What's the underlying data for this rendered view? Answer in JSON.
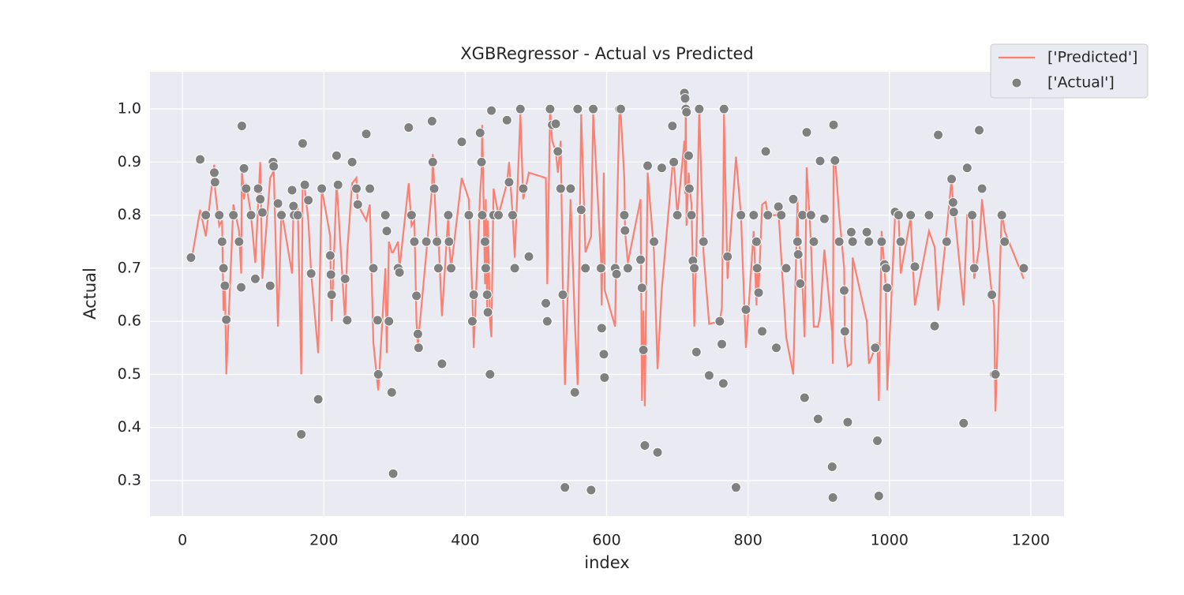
{
  "chart_data": {
    "type": "scatter",
    "title": "XGBRegressor - Actual vs Predicted",
    "xlabel": "index",
    "ylabel": "Actual",
    "x": [
      12,
      25,
      33,
      45,
      46,
      52,
      56,
      58,
      60,
      62,
      72,
      80,
      83,
      84,
      87,
      90,
      97,
      103,
      107,
      110,
      113,
      124,
      128,
      129,
      135,
      140,
      155,
      157,
      158,
      163,
      168,
      170,
      173,
      178,
      182,
      192,
      197,
      209,
      210,
      211,
      218,
      220,
      230,
      233,
      240,
      246,
      248,
      260,
      265,
      270,
      276,
      277,
      287,
      289,
      292,
      296,
      298,
      305,
      307,
      320,
      324,
      328,
      331,
      333,
      334,
      345,
      353,
      354,
      356,
      360,
      362,
      367,
      376,
      377,
      380,
      395,
      405,
      410,
      412,
      421,
      423,
      424,
      428,
      429,
      431,
      432,
      435,
      437,
      440,
      447,
      459,
      462,
      467,
      470,
      478,
      482,
      490,
      514,
      516,
      520,
      523,
      528,
      531,
      535,
      538,
      541,
      549,
      555,
      559,
      564,
      570,
      578,
      581,
      592,
      593,
      596,
      597,
      612,
      614,
      618,
      620,
      625,
      626,
      630,
      648,
      650,
      652,
      654,
      658,
      667,
      672,
      678,
      693,
      695,
      700,
      710,
      711,
      712,
      713,
      716,
      717,
      720,
      722,
      724,
      727,
      731,
      737,
      745,
      760,
      763,
      765,
      766,
      771,
      783,
      790,
      797,
      808,
      812,
      813,
      815,
      820,
      825,
      828,
      840,
      843,
      847,
      854,
      864,
      870,
      871,
      874,
      877,
      880,
      883,
      889,
      893,
      899,
      902,
      908,
      919,
      920,
      921,
      923,
      929,
      936,
      937,
      941,
      946,
      948,
      968,
      971,
      980,
      983,
      985,
      989,
      993,
      995,
      997,
      1008,
      1013,
      1016,
      1030,
      1036,
      1056,
      1064,
      1069,
      1081,
      1088,
      1090,
      1091,
      1105,
      1110,
      1117,
      1120,
      1127,
      1131,
      1145,
      1148,
      1150,
      1159,
      1163,
      1190
    ],
    "series": [
      {
        "name": "['Predicted']",
        "type": "line",
        "color": "#fa8072",
        "values": [
          0.71,
          0.81,
          0.76,
          0.895,
          0.85,
          0.78,
          0.79,
          0.62,
          0.67,
          0.5,
          0.82,
          0.77,
          0.69,
          0.89,
          0.83,
          0.86,
          0.8,
          0.71,
          0.82,
          0.9,
          0.68,
          0.87,
          0.88,
          0.89,
          0.59,
          0.81,
          0.69,
          0.81,
          0.8,
          0.82,
          0.5,
          0.86,
          0.85,
          0.79,
          0.69,
          0.54,
          0.85,
          0.76,
          0.65,
          0.6,
          0.86,
          0.82,
          0.6,
          0.73,
          0.86,
          0.87,
          0.82,
          0.79,
          0.82,
          0.56,
          0.48,
          0.47,
          0.7,
          0.54,
          0.75,
          0.73,
          0.73,
          0.75,
          0.7,
          0.86,
          0.78,
          0.79,
          0.6,
          0.55,
          0.57,
          0.73,
          0.85,
          0.915,
          0.86,
          0.74,
          0.76,
          0.61,
          0.8,
          0.75,
          0.7,
          0.87,
          0.83,
          0.65,
          0.55,
          0.84,
          0.88,
          0.97,
          0.67,
          0.83,
          0.62,
          0.79,
          0.6,
          0.57,
          0.85,
          0.8,
          0.86,
          0.9,
          0.8,
          0.72,
          0.99,
          0.83,
          0.88,
          0.87,
          0.67,
          1.0,
          0.94,
          0.92,
          0.88,
          0.94,
          0.67,
          0.48,
          0.83,
          0.6,
          0.48,
          0.99,
          0.73,
          0.76,
          0.99,
          0.72,
          0.63,
          0.88,
          0.66,
          0.59,
          0.77,
          0.99,
          0.99,
          0.87,
          0.77,
          0.71,
          0.83,
          0.45,
          0.62,
          0.44,
          0.88,
          0.73,
          0.51,
          0.66,
          0.89,
          0.9,
          0.8,
          0.94,
          0.84,
          1.02,
          0.78,
          0.88,
          0.86,
          0.82,
          0.7,
          0.59,
          0.74,
          1.0,
          0.73,
          0.595,
          0.6,
          0.625,
          0.82,
          0.99,
          0.68,
          0.91,
          0.8,
          0.55,
          0.77,
          0.63,
          0.7,
          0.66,
          0.82,
          0.825,
          0.8,
          0.8,
          0.81,
          0.72,
          0.57,
          0.5,
          0.83,
          0.76,
          0.73,
          0.67,
          0.57,
          0.89,
          0.75,
          0.59,
          0.59,
          0.61,
          0.735,
          0.58,
          0.52,
          0.895,
          0.91,
          0.8,
          0.7,
          0.56,
          0.515,
          0.52,
          0.72,
          0.6,
          0.52,
          0.55,
          0.56,
          0.45,
          0.77,
          0.7,
          0.66,
          0.47,
          0.8,
          0.8,
          0.69,
          0.795,
          0.63,
          0.77,
          0.74,
          0.62,
          0.77,
          0.87,
          0.82,
          0.82,
          0.63,
          0.8,
          0.8,
          0.68,
          0.74,
          0.83,
          0.65,
          0.63,
          0.43,
          0.81,
          0.77,
          0.68
        ]
      },
      {
        "name": "['Actual']",
        "type": "scatter",
        "color": "#808080",
        "values": [
          0.72,
          0.905,
          0.8,
          0.88,
          0.862,
          0.8,
          0.75,
          0.7,
          0.667,
          0.603,
          0.8,
          0.75,
          0.664,
          0.968,
          0.888,
          0.85,
          0.8,
          0.68,
          0.85,
          0.83,
          0.805,
          0.667,
          0.9,
          0.892,
          0.822,
          0.8,
          0.847,
          0.817,
          0.8,
          0.8,
          0.387,
          0.935,
          0.857,
          0.828,
          0.69,
          0.453,
          0.85,
          0.724,
          0.688,
          0.65,
          0.912,
          0.857,
          0.68,
          0.602,
          0.9,
          0.85,
          0.82,
          0.953,
          0.85,
          0.7,
          0.602,
          0.5,
          0.8,
          0.77,
          0.6,
          0.466,
          0.313,
          0.7,
          0.692,
          0.965,
          0.8,
          0.75,
          0.648,
          0.576,
          0.55,
          0.75,
          0.977,
          0.9,
          0.85,
          0.75,
          0.7,
          0.52,
          0.8,
          0.75,
          0.7,
          0.938,
          0.8,
          0.6,
          0.65,
          0.955,
          0.9,
          0.8,
          0.75,
          0.7,
          0.65,
          0.617,
          0.5,
          0.997,
          0.8,
          0.8,
          0.979,
          0.862,
          0.8,
          0.7,
          1.0,
          0.85,
          0.722,
          0.634,
          0.6,
          1.0,
          0.97,
          0.972,
          0.92,
          0.85,
          0.65,
          0.287,
          0.85,
          0.466,
          1.0,
          0.81,
          0.7,
          0.282,
          1.0,
          0.7,
          0.587,
          0.538,
          0.494,
          0.7,
          0.689,
          1.0,
          1.0,
          0.8,
          0.771,
          0.7,
          0.716,
          0.663,
          0.546,
          0.366,
          0.893,
          0.75,
          0.353,
          0.889,
          0.968,
          0.9,
          0.8,
          1.03,
          1.02,
          1.0,
          0.994,
          0.912,
          0.85,
          0.8,
          0.714,
          0.7,
          0.542,
          1.0,
          0.75,
          0.498,
          0.6,
          0.557,
          0.483,
          1.0,
          0.722,
          0.287,
          0.8,
          0.622,
          0.8,
          0.75,
          0.7,
          0.654,
          0.581,
          0.92,
          0.8,
          0.55,
          0.816,
          0.8,
          0.7,
          0.83,
          0.75,
          0.726,
          0.671,
          0.8,
          0.456,
          0.956,
          0.8,
          0.75,
          0.416,
          0.902,
          0.793,
          0.326,
          0.268,
          0.97,
          0.903,
          0.75,
          0.658,
          0.581,
          0.41,
          0.768,
          0.75,
          0.768,
          0.75,
          0.55,
          0.375,
          0.271,
          0.75,
          0.707,
          0.7,
          0.663,
          0.806,
          0.8,
          0.75,
          0.8,
          0.703,
          0.8,
          0.591,
          0.951,
          0.75,
          0.868,
          0.824,
          0.806,
          0.408,
          0.889,
          0.8,
          0.7,
          0.96,
          0.85,
          0.65,
          0.5,
          0.5,
          0.8,
          0.75,
          0.7
        ]
      }
    ],
    "xlim": [
      -46,
      1247
    ],
    "ylim": [
      0.233,
      1.07
    ],
    "xticks": [
      0,
      200,
      400,
      600,
      800,
      1000,
      1200
    ],
    "yticks": [
      0.3,
      0.4,
      0.5,
      0.6,
      0.7,
      0.8,
      0.9,
      {
        "value": 1,
        "label": "1.0"
      }
    ],
    "grid": true,
    "legend": "upper right"
  }
}
